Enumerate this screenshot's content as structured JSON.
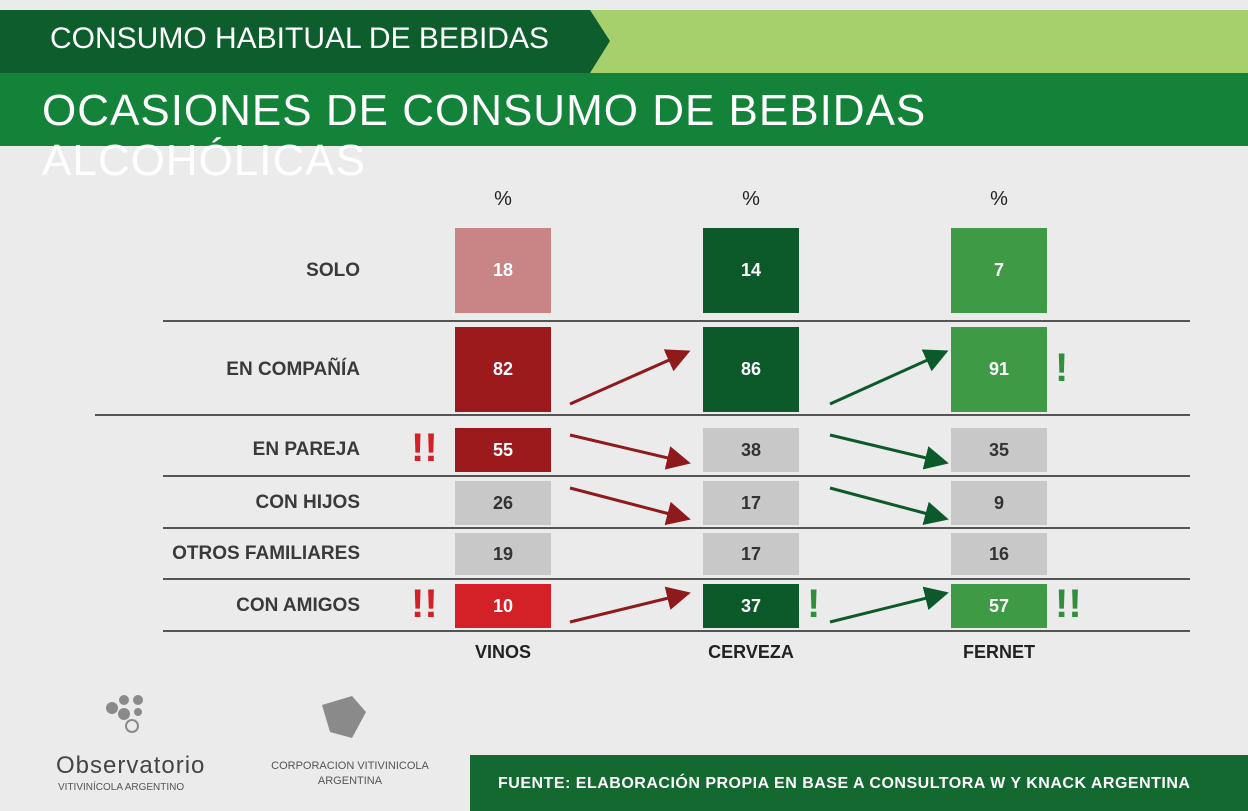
{
  "header": {
    "section": "CONSUMO HABITUAL DE BEBIDAS",
    "title": "OCASIONES DE CONSUMO DE BEBIDAS ALCOHÓLICAS"
  },
  "table": {
    "columns": [
      {
        "name": "VINOS",
        "unit": "%"
      },
      {
        "name": "CERVEZA",
        "unit": "%"
      },
      {
        "name": "FERNET",
        "unit": "%"
      }
    ],
    "rows": [
      {
        "label": "SOLO",
        "cells": [
          {
            "value": 18,
            "color": "#c98585"
          },
          {
            "value": 14,
            "color": "#0c5a2a"
          },
          {
            "value": 7,
            "color": "#3e9a45"
          }
        ]
      },
      {
        "label": "EN COMPAÑÍA",
        "cells": [
          {
            "value": 82,
            "color": "#9c1a1c"
          },
          {
            "value": 86,
            "color": "#0c5a2a"
          },
          {
            "value": 91,
            "color": "#3e9a45",
            "flag": "!"
          }
        ]
      },
      {
        "label": "EN PAREJA",
        "cells": [
          {
            "value": 55,
            "color": "#9c1a1c",
            "flag": "!!"
          },
          {
            "value": 38,
            "color": "#c8c8c8"
          },
          {
            "value": 35,
            "color": "#c8c8c8"
          }
        ]
      },
      {
        "label": "CON HIJOS",
        "cells": [
          {
            "value": 26,
            "color": "#c8c8c8"
          },
          {
            "value": 17,
            "color": "#c8c8c8"
          },
          {
            "value": 9,
            "color": "#c8c8c8"
          }
        ]
      },
      {
        "label": "OTROS FAMILIARES",
        "cells": [
          {
            "value": 19,
            "color": "#c8c8c8"
          },
          {
            "value": 17,
            "color": "#c8c8c8"
          },
          {
            "value": 16,
            "color": "#c8c8c8"
          }
        ]
      },
      {
        "label": "CON AMIGOS",
        "cells": [
          {
            "value": 10,
            "color": "#d42027",
            "flag": "!!"
          },
          {
            "value": 37,
            "color": "#0c5a2a",
            "flag": "!"
          },
          {
            "value": 57,
            "color": "#3e9a45",
            "flag": "!!"
          }
        ]
      }
    ]
  },
  "footer": {
    "logo1": {
      "name": "Observatorio",
      "sub": "VITIVINÍCOLA ARGENTINO"
    },
    "logo2": {
      "line1": "CORPORACION VITIVINICOLA",
      "line2": "ARGENTINA"
    },
    "source": "FUENTE: ELABORACIÓN PROPIA EN BASE A CONSULTORA W Y KNACK ARGENTINA"
  }
}
